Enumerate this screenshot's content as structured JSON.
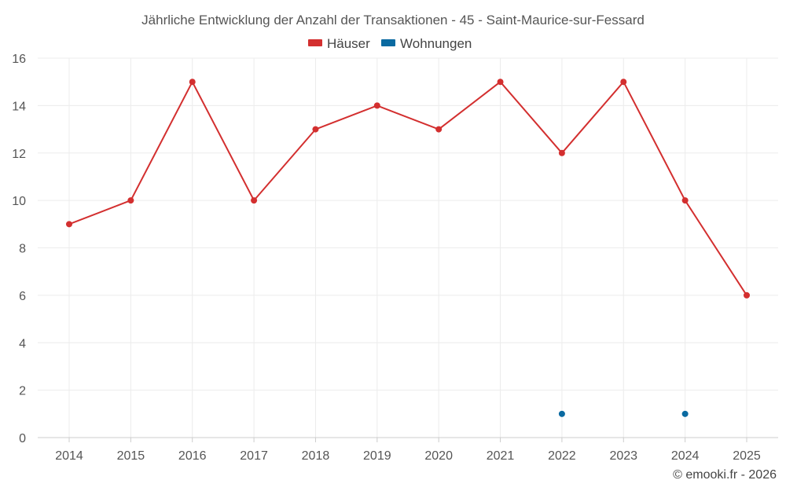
{
  "chart_data": {
    "type": "line",
    "title": "Jährliche Entwicklung der Anzahl der Transaktionen - 45 - Saint-Maurice-sur-Fessard",
    "categories": [
      "2014",
      "2015",
      "2016",
      "2017",
      "2018",
      "2019",
      "2020",
      "2021",
      "2022",
      "2023",
      "2024",
      "2025"
    ],
    "series": [
      {
        "name": "Häuser",
        "color": "#d32f2f",
        "style": "line",
        "values": [
          9,
          10,
          15,
          10,
          13,
          14,
          13,
          15,
          12,
          15,
          10,
          6
        ]
      },
      {
        "name": "Wohnungen",
        "color": "#0a6aa1",
        "style": "points",
        "values": [
          null,
          null,
          null,
          null,
          null,
          null,
          null,
          null,
          1,
          null,
          1,
          null
        ]
      }
    ],
    "ylim": [
      0,
      16
    ],
    "yticks": [
      0,
      2,
      4,
      6,
      8,
      10,
      12,
      14,
      16
    ],
    "grid": true,
    "legend": "top-center",
    "xlabel": "",
    "ylabel": ""
  },
  "credit": "© emooki.fr - 2026"
}
